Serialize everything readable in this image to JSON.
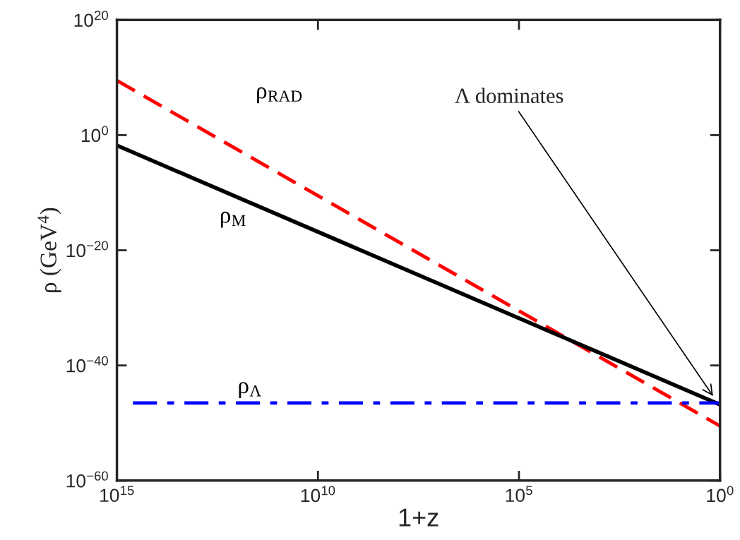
{
  "chart_data": {
    "type": "line",
    "xlabel": "1+z",
    "ylabel": "ρ (GeV$^{4}$)",
    "log": "xy",
    "series": [
      {
        "name": "ρ$_{RAD}$",
        "color": "#ff0000",
        "line_style": "dashed",
        "x": [
          1000000000000000.0,
          1
        ],
        "values": [
          3000000000.0,
          3e-51
        ]
      },
      {
        "name": "ρ$_{M}$",
        "color": "#000000",
        "line_style": "solid",
        "x": [
          1000000000000000.0,
          1
        ],
        "values": [
          0.016,
          1.6e-47
        ]
      },
      {
        "name": "ρ$_{Λ}$",
        "color": "#0000ff",
        "line_style": "dashdot",
        "x": [
          400000000000000.0,
          1
        ],
        "values": [
          3e-47,
          3e-47
        ]
      }
    ],
    "xlim": [
      1000000000000000.0,
      1
    ],
    "ylim": [
      1e-60,
      1e+20
    ],
    "xticks": [
      {
        "value": 1000000000000000.0,
        "label": "10$^{15}$"
      },
      {
        "value": 10000000000.0,
        "label": "10$^{10}$"
      },
      {
        "value": 100000.0,
        "label": "10$^{5}$"
      },
      {
        "value": 1,
        "label": "10$^{0}$"
      }
    ],
    "yticks": [
      {
        "value": 1e-60,
        "label": "10$^{−60}$"
      },
      {
        "value": 1e-40,
        "label": "10$^{−40}$"
      },
      {
        "value": 1e-20,
        "label": "10$^{−20}$"
      },
      {
        "value": 1,
        "label": "10$^{0}$"
      },
      {
        "value": 1e+20,
        "label": "10$^{20}$"
      }
    ],
    "grid": false,
    "legend": false,
    "annotations": [
      {
        "text": "Λ dominates",
        "x": 1.4,
        "y": 2.5e-46
      }
    ]
  }
}
